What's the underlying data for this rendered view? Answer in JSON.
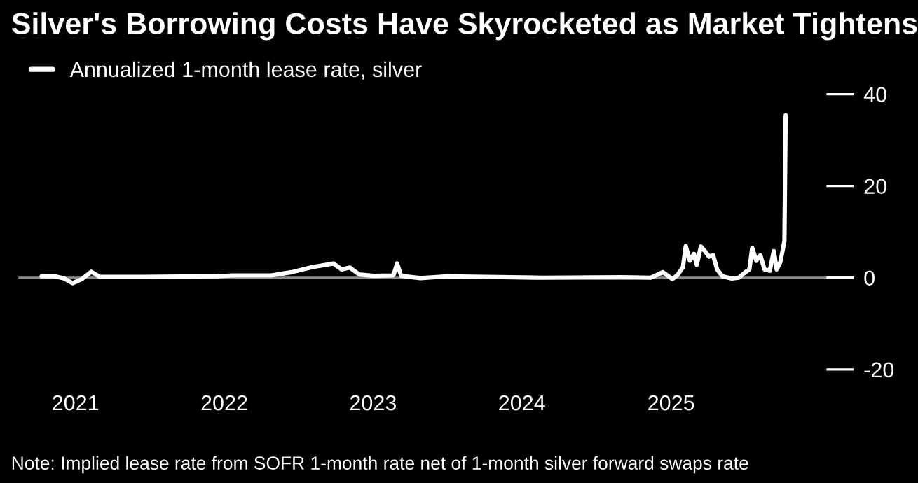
{
  "chart_data": {
    "type": "line",
    "title": "Silver's Borrowing Costs Have Skyrocketed as Market Tightens",
    "annotations": [
      "Note: Implied lease rate from SOFR 1-month rate net of 1-month silver forward swaps rate"
    ],
    "x": [
      "2020-10-10",
      "2020-11-12",
      "2020-12-05",
      "2020-12-25",
      "2021-01-17",
      "2021-02-09",
      "2021-03-01",
      "2021-06-15",
      "2021-12-15",
      "2022-01-20",
      "2022-04-26",
      "2022-06-15",
      "2022-08-04",
      "2022-09-26",
      "2022-10-16",
      "2022-11-05",
      "2022-11-28",
      "2023-01-01",
      "2023-02-20",
      "2023-03-01",
      "2023-03-11",
      "2023-04-27",
      "2023-07-02",
      "2024-02-20",
      "2024-09-06",
      "2024-11-12",
      "2024-12-12",
      "2025-01-04",
      "2025-01-17",
      "2025-01-30",
      "2025-02-06",
      "2025-02-16",
      "2025-02-26",
      "2025-03-05",
      "2025-03-15",
      "2025-03-25",
      "2025-04-04",
      "2025-04-14",
      "2025-04-24",
      "2025-05-07",
      "2025-05-30",
      "2025-06-16",
      "2025-07-02",
      "2025-07-12",
      "2025-07-19",
      "2025-07-29",
      "2025-08-08",
      "2025-08-18",
      "2025-08-31",
      "2025-09-10",
      "2025-09-17",
      "2025-09-26",
      "2025-10-06",
      "2025-10-09"
    ],
    "series": [
      {
        "name": "Annualized 1-month lease rate, silver",
        "color": "#ffffff",
        "values": [
          0.3,
          0.3,
          -0.2,
          -1.2,
          -0.3,
          1.3,
          0.2,
          0.2,
          0.3,
          0.5,
          0.5,
          1.2,
          2.3,
          3.1,
          1.8,
          2.2,
          0.7,
          0.4,
          0.5,
          3.1,
          0.4,
          -0.1,
          0.3,
          0,
          0.1,
          0,
          1.2,
          -0.3,
          0.6,
          2.3,
          6.9,
          3.7,
          5.2,
          2.8,
          6.8,
          5.8,
          4.6,
          4.9,
          1.8,
          0.3,
          -0.2,
          0,
          1.2,
          1.8,
          6.5,
          3.7,
          4.9,
          1.8,
          1.5,
          5.8,
          1.8,
          3.4,
          8.0,
          35.4
        ]
      }
    ],
    "xlim": [
      "2020-08-14",
      "2026-03-25"
    ],
    "xticks": [
      {
        "value": "2021-01-01",
        "label": "2021"
      },
      {
        "value": "2022-01-01",
        "label": "2022"
      },
      {
        "value": "2023-01-01",
        "label": "2023"
      },
      {
        "value": "2024-01-01",
        "label": "2024"
      },
      {
        "value": "2025-01-01",
        "label": "2025"
      }
    ],
    "ylim": [
      -20,
      40
    ],
    "yticks": [
      -20,
      0,
      20,
      40
    ],
    "ref_lines": [
      {
        "axis": "y",
        "value": 0,
        "color": "#8c8c8c"
      }
    ],
    "legend": "top left",
    "grid": false,
    "marker": "none",
    "line_style": "solid"
  }
}
